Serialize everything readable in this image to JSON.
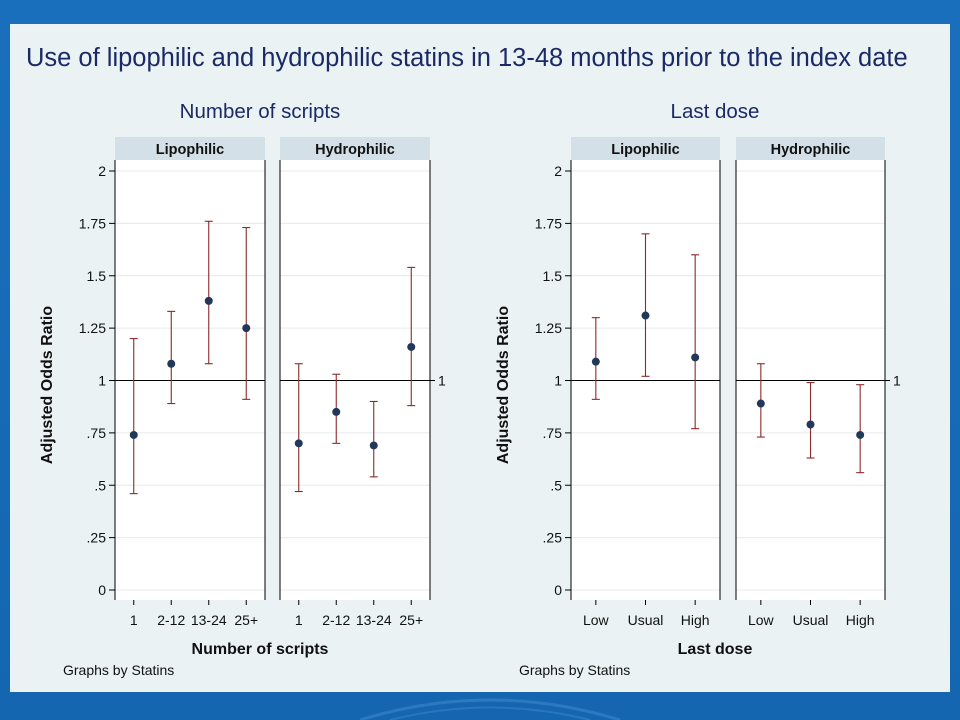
{
  "slide": {
    "title": "Use of lipophilic and hydrophilic statins in 13-48 months prior to the index date"
  },
  "colors": {
    "background": "#1466b0",
    "slide": "#eaf2f3",
    "title": "#1b2a66",
    "panel_header": "#d3e0e8",
    "ci_line": "#8b2a2a",
    "point": "#22385a"
  },
  "chart_data": [
    {
      "type": "scatter",
      "title": "Number of scripts",
      "xlabel": "Number of scripts",
      "ylabel": "Adjusted Odds Ratio",
      "note": "Graphs by Statins",
      "ylim": [
        0,
        2
      ],
      "y_ticks": [
        0,
        0.25,
        0.5,
        0.75,
        1,
        1.25,
        1.5,
        1.75,
        2
      ],
      "y_tick_labels": [
        "0",
        ".25",
        ".5",
        ".75",
        "1",
        "1.25",
        "1.5",
        "1.75",
        "2"
      ],
      "reference_line": 1,
      "reference_label": "1",
      "categories": [
        "1",
        "2-12",
        "13-24",
        "25+"
      ],
      "grid": true,
      "panels": [
        {
          "name": "Lipophilic",
          "estimate": [
            0.74,
            1.08,
            1.38,
            1.25
          ],
          "lower": [
            0.46,
            0.89,
            1.08,
            0.91
          ],
          "upper": [
            1.2,
            1.33,
            1.76,
            1.73
          ]
        },
        {
          "name": "Hydrophilic",
          "estimate": [
            0.7,
            0.85,
            0.69,
            1.16
          ],
          "lower": [
            0.47,
            0.7,
            0.54,
            0.88
          ],
          "upper": [
            1.08,
            1.03,
            0.9,
            1.54
          ]
        }
      ]
    },
    {
      "type": "scatter",
      "title": "Last dose",
      "xlabel": "Last dose",
      "ylabel": "Adjusted Odds Ratio",
      "note": "Graphs by Statins",
      "ylim": [
        0,
        2
      ],
      "y_ticks": [
        0,
        0.25,
        0.5,
        0.75,
        1,
        1.25,
        1.5,
        1.75,
        2
      ],
      "y_tick_labels": [
        "0",
        ".25",
        ".5",
        ".75",
        "1",
        "1.25",
        "1.5",
        "1.75",
        "2"
      ],
      "reference_line": 1,
      "reference_label": "1",
      "categories": [
        "Low",
        "Usual",
        "High"
      ],
      "grid": true,
      "panels": [
        {
          "name": "Lipophilic",
          "estimate": [
            1.09,
            1.31,
            1.11
          ],
          "lower": [
            0.91,
            1.02,
            0.77
          ],
          "upper": [
            1.3,
            1.7,
            1.6
          ]
        },
        {
          "name": "Hydrophilic",
          "estimate": [
            0.89,
            0.79,
            0.74
          ],
          "lower": [
            0.73,
            0.63,
            0.56
          ],
          "upper": [
            1.08,
            0.99,
            0.98
          ]
        }
      ]
    }
  ]
}
